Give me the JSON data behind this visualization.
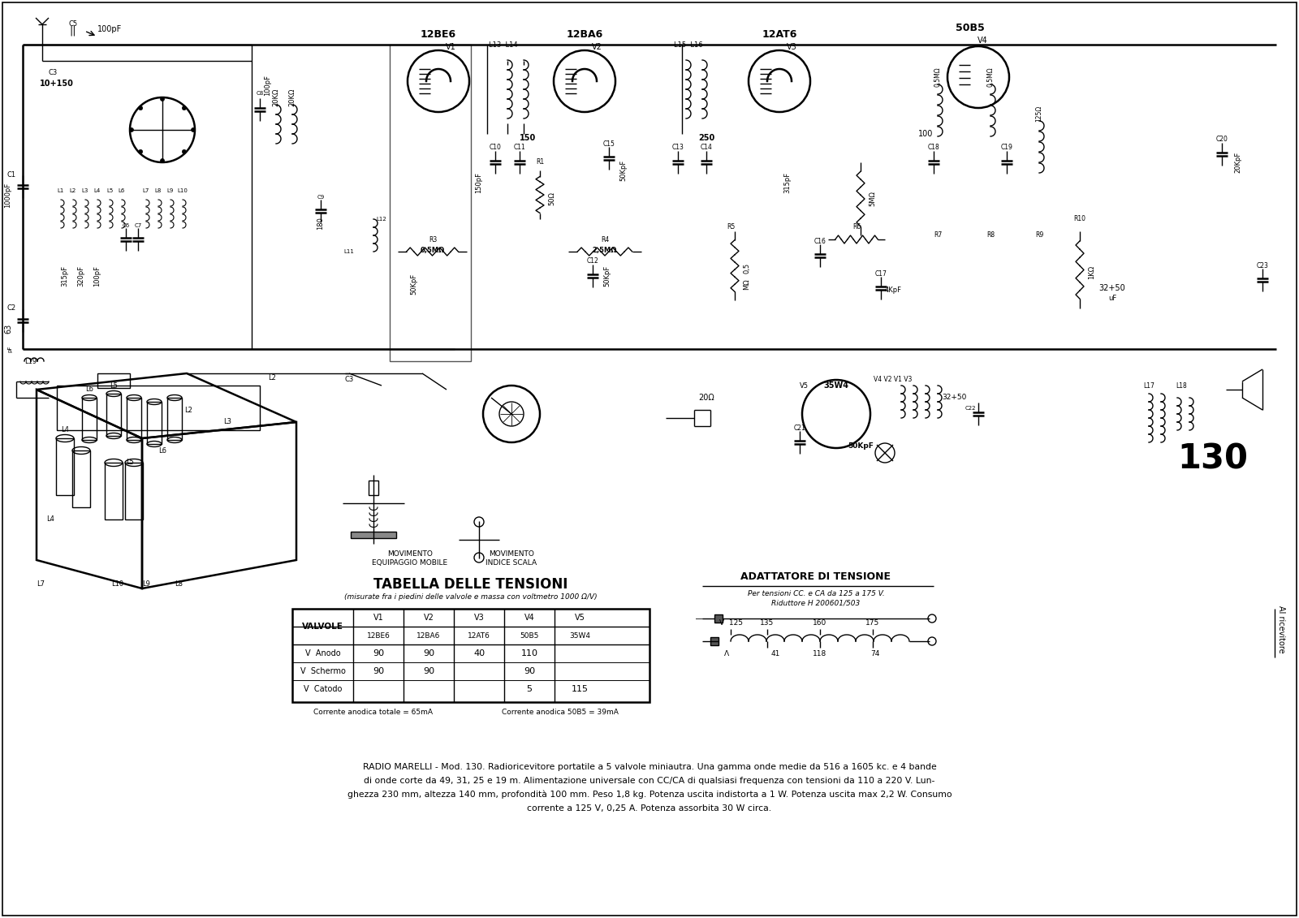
{
  "bg_color": "#ffffff",
  "text_color": "#000000",
  "number_130": "130",
  "title_label_lines": [
    "RADIO MARELLI - Mod. 130. Radioricevitore portatile a 5 valvole miniautra. Una gamma onde medie da 516 a 1605 kc. e 4 bande",
    "di onde corte da 49, 31, 25 e 19 m. Alimentazione universale con CC/CA di qualsiasi frequenza con tensioni da 110 a 220 V. Lun-",
    "ghezza 230 mm, altezza 140 mm, profondità 100 mm. Peso 1,8 kg. Potenza uscita indistorta a 1 W. Potenza uscita max 2,2 W. Consumo",
    "corrente a 125 V, 0,25 A. Potenza assorbita 30 W circa."
  ],
  "table_title": "TABELLA DELLE TENSIONI",
  "table_subtitle": "(misurate fra i piedini delle valvole e massa con voltmetro 1000 Ω/V)",
  "table_headers": [
    "VALVOLE",
    "V1",
    "V2",
    "V3",
    "V4",
    "V5"
  ],
  "table_valve_names": [
    "",
    "12BE6",
    "12BA6",
    "12AT6",
    "50B5",
    "35W4"
  ],
  "table_rows": [
    [
      "V  Anodo",
      "90",
      "90",
      "40",
      "110",
      ""
    ],
    [
      "V  Schermo",
      "90",
      "90",
      "",
      "90",
      ""
    ],
    [
      "V  Catodo",
      "",
      "",
      "",
      "5",
      "115"
    ]
  ],
  "table_footer_left": "Corrente anodica totale = 65mA",
  "table_footer_right": "Corrente anodica 50B5 = 39mA",
  "adattatore_title": "ADATTATORE DI TENSIONE",
  "adattatore_line1": "Per tensioni CC. e CA da 125 a 175 V.",
  "adattatore_line2": "Riduttore H 200601/503",
  "mov_equipaggio": "MOVIMENTO\nEQUIPAGGIO MOBILE",
  "mov_indice": "MOVIMENTO\nINDICE SCALA"
}
